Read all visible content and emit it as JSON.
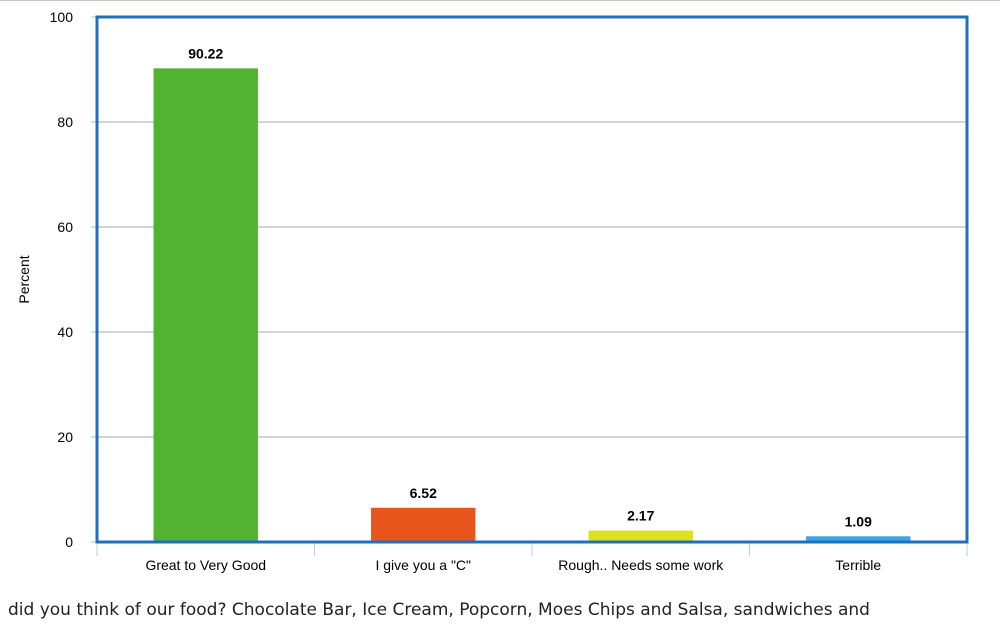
{
  "chart_data": {
    "type": "bar",
    "categories": [
      "Great to Very Good",
      "I give you a \"C\"",
      "Rough.. Needs some work",
      "Terrible"
    ],
    "values": [
      90.22,
      6.52,
      2.17,
      1.09
    ],
    "value_labels": [
      "90.22",
      "6.52",
      "2.17",
      "1.09"
    ],
    "colors": [
      "#52b332",
      "#e9561d",
      "#dde21b",
      "#3aa8dd"
    ],
    "ylabel": "Percent",
    "ylim": [
      0,
      100
    ],
    "yticks": [
      0,
      20,
      40,
      60,
      80,
      100
    ],
    "grid": true,
    "frame_color": "#1f6fc0"
  },
  "caption": "did you think of our food? Chocolate Bar, Ice Cream, Popcorn, Moes Chips and Salsa, sandwiches and"
}
